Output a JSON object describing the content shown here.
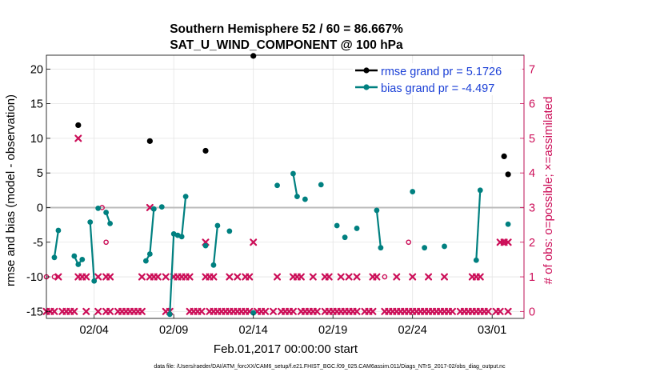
{
  "chart_data": {
    "type": "line",
    "title_line1": "Southern Hemisphere 52 / 60 = 86.667%",
    "title_line2": "SAT_U_WIND_COMPONENT @ 100 hPa",
    "xlabel": "Feb.01,2017 00:00:00 start",
    "ylabel": "rmse and bias (model - observation)",
    "y2label": "# of obs: o=possible; ×=assimilated",
    "footnote": "data file: /Users/raeder/DAI/ATM_forcXX/CAM6_setup/f.e21.FHIST_BGC.f09_025.CAM6assim.011/Diags_NTrS_2017-02/obs_diag_output.nc",
    "xlim": [
      1,
      31
    ],
    "ylim": [
      -16,
      22
    ],
    "y2lim": [
      -0.2,
      7.4
    ],
    "x_ticks": [
      {
        "v": 4,
        "label": "02/04"
      },
      {
        "v": 9,
        "label": "02/09"
      },
      {
        "v": 14,
        "label": "02/14"
      },
      {
        "v": 19,
        "label": "02/19"
      },
      {
        "v": 24,
        "label": "02/24"
      },
      {
        "v": 29,
        "label": "03/01"
      }
    ],
    "y_ticks": [
      {
        "v": -15,
        "label": "-15"
      },
      {
        "v": -10,
        "label": "-10"
      },
      {
        "v": -5,
        "label": "-5"
      },
      {
        "v": 0,
        "label": "0"
      },
      {
        "v": 5,
        "label": "5"
      },
      {
        "v": 10,
        "label": "10"
      },
      {
        "v": 15,
        "label": "15"
      },
      {
        "v": 20,
        "label": "20"
      }
    ],
    "y2_ticks": [
      {
        "v": 0,
        "label": "0"
      },
      {
        "v": 1,
        "label": "1"
      },
      {
        "v": 2,
        "label": "2"
      },
      {
        "v": 3,
        "label": "3"
      },
      {
        "v": 4,
        "label": "4"
      },
      {
        "v": 5,
        "label": "5"
      },
      {
        "v": 6,
        "label": "6"
      },
      {
        "v": 7,
        "label": "7"
      }
    ],
    "colors": {
      "rmse": "#000000",
      "bias": "#008080",
      "obs": "#cc0e58",
      "zero": "#bbbbbb",
      "grid": "#e3e3e3",
      "legend_text": "#1a3fd6"
    },
    "legend": [
      {
        "key": "rmse",
        "label": "rmse grand pr = 5.1726"
      },
      {
        "key": "bias",
        "label": "bias grand pr = -4.497"
      }
    ],
    "rmse": [
      [
        3.0,
        11.9
      ],
      [
        7.5,
        9.6
      ],
      [
        11.0,
        8.2
      ],
      [
        14.0,
        21.9
      ],
      [
        29.75,
        7.4
      ],
      [
        30.0,
        4.8
      ]
    ],
    "bias_segments": [
      [
        [
          1.5,
          -7.2
        ],
        [
          1.75,
          -3.3
        ]
      ],
      [
        [
          2.75,
          -7.0
        ],
        [
          3.0,
          -8.2
        ],
        [
          3.25,
          -7.5
        ]
      ],
      [
        [
          3.75,
          -2.1
        ],
        [
          4.0,
          -10.6
        ]
      ],
      [
        [
          4.25,
          -0.1
        ]
      ],
      [
        [
          4.75,
          -0.7
        ],
        [
          5.0,
          -2.3
        ]
      ],
      [
        [
          7.25,
          -7.7
        ],
        [
          7.5,
          -6.7
        ],
        [
          7.75,
          -0.2
        ]
      ],
      [
        [
          8.25,
          0.1
        ]
      ],
      [
        [
          8.75,
          -15.4
        ],
        [
          9.0,
          -3.8
        ],
        [
          9.25,
          -4.0
        ],
        [
          9.5,
          -4.2
        ],
        [
          9.75,
          1.6
        ]
      ],
      [
        [
          11.0,
          -5.5
        ]
      ],
      [
        [
          11.5,
          -8.3
        ],
        [
          11.75,
          -2.6
        ]
      ],
      [
        [
          12.5,
          -3.4
        ]
      ],
      [
        [
          14.0,
          -15.2
        ]
      ],
      [
        [
          15.5,
          3.2
        ]
      ],
      [
        [
          16.5,
          4.9
        ],
        [
          16.75,
          1.6
        ]
      ],
      [
        [
          17.25,
          1.2
        ]
      ],
      [
        [
          18.25,
          3.3
        ]
      ],
      [
        [
          19.25,
          -2.6
        ]
      ],
      [
        [
          19.75,
          -4.3
        ]
      ],
      [
        [
          20.5,
          -3.0
        ]
      ],
      [
        [
          21.75,
          -0.4
        ],
        [
          22.0,
          -5.8
        ]
      ],
      [
        [
          24.0,
          2.3
        ]
      ],
      [
        [
          24.75,
          -5.8
        ]
      ],
      [
        [
          26.0,
          -5.6
        ]
      ],
      [
        [
          28.0,
          -7.6
        ],
        [
          28.25,
          2.5
        ]
      ],
      [
        [
          30.0,
          -2.4
        ]
      ]
    ],
    "obs_possible": [
      [
        1,
        1
      ],
      [
        1.5,
        1
      ],
      [
        4.5,
        3
      ],
      [
        4.75,
        2
      ],
      [
        22.25,
        1
      ],
      [
        23.75,
        2
      ],
      [
        29.75,
        2
      ]
    ],
    "obs_assimilated": [
      [
        1.0,
        0
      ],
      [
        1.25,
        0
      ],
      [
        1.5,
        0
      ],
      [
        2.0,
        0
      ],
      [
        2.25,
        0
      ],
      [
        2.5,
        0
      ],
      [
        2.75,
        0
      ],
      [
        3.5,
        0
      ],
      [
        4.25,
        0
      ],
      [
        4.75,
        0
      ],
      [
        5.0,
        0
      ],
      [
        5.5,
        0
      ],
      [
        5.75,
        0
      ],
      [
        6.0,
        0
      ],
      [
        6.25,
        0
      ],
      [
        6.5,
        0
      ],
      [
        6.75,
        0
      ],
      [
        7.0,
        0
      ],
      [
        8.5,
        0
      ],
      [
        8.75,
        0
      ],
      [
        10.0,
        0
      ],
      [
        10.25,
        0
      ],
      [
        10.5,
        0
      ],
      [
        10.75,
        0
      ],
      [
        11.25,
        0
      ],
      [
        11.5,
        0
      ],
      [
        11.75,
        0
      ],
      [
        12.0,
        0
      ],
      [
        12.25,
        0
      ],
      [
        12.5,
        0
      ],
      [
        12.75,
        0
      ],
      [
        13.0,
        0
      ],
      [
        13.25,
        0
      ],
      [
        13.5,
        0
      ],
      [
        13.75,
        0
      ],
      [
        14.25,
        0
      ],
      [
        14.5,
        0
      ],
      [
        14.75,
        0
      ],
      [
        15.25,
        0
      ],
      [
        15.75,
        0
      ],
      [
        16.0,
        0
      ],
      [
        16.25,
        0
      ],
      [
        16.5,
        0
      ],
      [
        17.0,
        0
      ],
      [
        17.25,
        0
      ],
      [
        17.5,
        0
      ],
      [
        17.75,
        0
      ],
      [
        18.0,
        0
      ],
      [
        18.5,
        0
      ],
      [
        18.75,
        0
      ],
      [
        19.0,
        0
      ],
      [
        19.25,
        0
      ],
      [
        19.5,
        0
      ],
      [
        19.75,
        0
      ],
      [
        20.0,
        0
      ],
      [
        20.25,
        0
      ],
      [
        20.5,
        0
      ],
      [
        21.0,
        0
      ],
      [
        21.25,
        0
      ],
      [
        21.5,
        0
      ],
      [
        22.25,
        0
      ],
      [
        22.5,
        0
      ],
      [
        22.75,
        0
      ],
      [
        23.0,
        0
      ],
      [
        23.25,
        0
      ],
      [
        23.5,
        0
      ],
      [
        23.75,
        0
      ],
      [
        24.0,
        0
      ],
      [
        24.25,
        0
      ],
      [
        24.5,
        0
      ],
      [
        24.75,
        0
      ],
      [
        25.0,
        0
      ],
      [
        25.25,
        0
      ],
      [
        25.5,
        0
      ],
      [
        25.75,
        0
      ],
      [
        26.0,
        0
      ],
      [
        26.25,
        0
      ],
      [
        26.5,
        0
      ],
      [
        27.0,
        0
      ],
      [
        27.25,
        0
      ],
      [
        27.5,
        0
      ],
      [
        27.75,
        0
      ],
      [
        28.0,
        0
      ],
      [
        28.25,
        0
      ],
      [
        28.5,
        0
      ],
      [
        28.75,
        0
      ],
      [
        29.25,
        0
      ],
      [
        29.5,
        0
      ],
      [
        30.0,
        0
      ],
      [
        1.75,
        1
      ],
      [
        3.0,
        1
      ],
      [
        3.25,
        1
      ],
      [
        3.5,
        1
      ],
      [
        4.25,
        1
      ],
      [
        4.75,
        1
      ],
      [
        5.0,
        1
      ],
      [
        7.0,
        1
      ],
      [
        7.5,
        1
      ],
      [
        7.75,
        1
      ],
      [
        8.0,
        1
      ],
      [
        8.5,
        1
      ],
      [
        9.0,
        1
      ],
      [
        9.25,
        1
      ],
      [
        9.5,
        1
      ],
      [
        9.75,
        1
      ],
      [
        10.0,
        1
      ],
      [
        11.0,
        1
      ],
      [
        11.25,
        1
      ],
      [
        11.5,
        1
      ],
      [
        12.5,
        1
      ],
      [
        13.0,
        1
      ],
      [
        13.5,
        1
      ],
      [
        13.75,
        1
      ],
      [
        15.5,
        1
      ],
      [
        16.5,
        1
      ],
      [
        16.75,
        1
      ],
      [
        17.0,
        1
      ],
      [
        17.75,
        1
      ],
      [
        18.5,
        1
      ],
      [
        18.75,
        1
      ],
      [
        19.5,
        1
      ],
      [
        20.0,
        1
      ],
      [
        20.5,
        1
      ],
      [
        21.5,
        1
      ],
      [
        21.75,
        1
      ],
      [
        23.0,
        1
      ],
      [
        24.0,
        1
      ],
      [
        25.0,
        1
      ],
      [
        26.0,
        1
      ],
      [
        27.75,
        1
      ],
      [
        28.0,
        1
      ],
      [
        28.25,
        1
      ],
      [
        11.0,
        2
      ],
      [
        14.0,
        2
      ],
      [
        29.5,
        2
      ],
      [
        29.75,
        2
      ],
      [
        30.0,
        2
      ],
      [
        7.5,
        3
      ],
      [
        3.0,
        5
      ]
    ]
  }
}
